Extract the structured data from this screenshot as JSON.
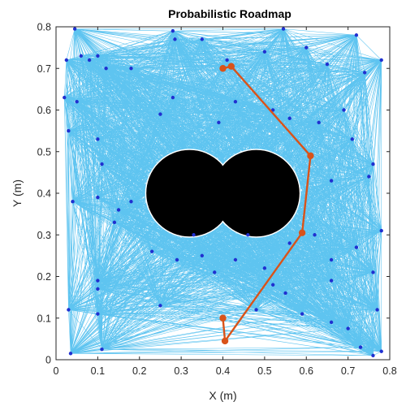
{
  "chart_data": {
    "type": "scatter",
    "title": "Probabilistic Roadmap",
    "xlabel": "X (m)",
    "ylabel": "Y (m)",
    "xlim": [
      0,
      0.8
    ],
    "ylim": [
      0,
      0.8
    ],
    "xticks": [
      "0",
      "0.1",
      "0.2",
      "0.3",
      "0.4",
      "0.5",
      "0.6",
      "0.7",
      "0.8"
    ],
    "yticks": [
      "0",
      "0.1",
      "0.2",
      "0.3",
      "0.4",
      "0.5",
      "0.6",
      "0.7",
      "0.8"
    ],
    "grid": false,
    "colors": {
      "edges": "#4DBEEE",
      "nodes": "#2030D0",
      "path": "#D95319",
      "obstacle": "#000000"
    },
    "nodes": [
      [
        0.045,
        0.795
      ],
      [
        0.28,
        0.79
      ],
      [
        0.545,
        0.795
      ],
      [
        0.72,
        0.78
      ],
      [
        0.78,
        0.72
      ],
      [
        0.025,
        0.72
      ],
      [
        0.06,
        0.73
      ],
      [
        0.08,
        0.72
      ],
      [
        0.1,
        0.73
      ],
      [
        0.12,
        0.7
      ],
      [
        0.18,
        0.7
      ],
      [
        0.285,
        0.77
      ],
      [
        0.35,
        0.77
      ],
      [
        0.41,
        0.72
      ],
      [
        0.5,
        0.74
      ],
      [
        0.6,
        0.75
      ],
      [
        0.65,
        0.71
      ],
      [
        0.74,
        0.69
      ],
      [
        0.02,
        0.63
      ],
      [
        0.05,
        0.62
      ],
      [
        0.28,
        0.63
      ],
      [
        0.43,
        0.62
      ],
      [
        0.52,
        0.6
      ],
      [
        0.63,
        0.57
      ],
      [
        0.69,
        0.6
      ],
      [
        0.03,
        0.55
      ],
      [
        0.1,
        0.53
      ],
      [
        0.25,
        0.59
      ],
      [
        0.39,
        0.57
      ],
      [
        0.56,
        0.58
      ],
      [
        0.71,
        0.53
      ],
      [
        0.76,
        0.47
      ],
      [
        0.11,
        0.47
      ],
      [
        0.04,
        0.38
      ],
      [
        0.1,
        0.39
      ],
      [
        0.66,
        0.43
      ],
      [
        0.75,
        0.44
      ],
      [
        0.15,
        0.36
      ],
      [
        0.18,
        0.38
      ],
      [
        0.14,
        0.33
      ],
      [
        0.33,
        0.3
      ],
      [
        0.46,
        0.3
      ],
      [
        0.56,
        0.28
      ],
      [
        0.62,
        0.3
      ],
      [
        0.78,
        0.31
      ],
      [
        0.23,
        0.26
      ],
      [
        0.29,
        0.24
      ],
      [
        0.35,
        0.25
      ],
      [
        0.43,
        0.24
      ],
      [
        0.5,
        0.22
      ],
      [
        0.66,
        0.24
      ],
      [
        0.72,
        0.27
      ],
      [
        0.1,
        0.19
      ],
      [
        0.1,
        0.17
      ],
      [
        0.55,
        0.16
      ],
      [
        0.66,
        0.19
      ],
      [
        0.76,
        0.21
      ],
      [
        0.03,
        0.12
      ],
      [
        0.1,
        0.11
      ],
      [
        0.25,
        0.13
      ],
      [
        0.48,
        0.12
      ],
      [
        0.59,
        0.11
      ],
      [
        0.66,
        0.09
      ],
      [
        0.77,
        0.12
      ],
      [
        0.11,
        0.025
      ],
      [
        0.035,
        0.015
      ],
      [
        0.7,
        0.075
      ],
      [
        0.73,
        0.03
      ],
      [
        0.76,
        0.01
      ],
      [
        0.78,
        0.02
      ],
      [
        0.38,
        0.21
      ],
      [
        0.52,
        0.18
      ]
    ],
    "path": [
      [
        0.4,
        0.1
      ],
      [
        0.405,
        0.045
      ],
      [
        0.59,
        0.305
      ],
      [
        0.61,
        0.49
      ],
      [
        0.42,
        0.705
      ],
      [
        0.4,
        0.7
      ]
    ],
    "obstacles": [
      {
        "shape": "circle",
        "cx": 0.32,
        "cy": 0.4,
        "r": 0.105
      },
      {
        "shape": "circle",
        "cx": 0.48,
        "cy": 0.4,
        "r": 0.105
      }
    ]
  }
}
